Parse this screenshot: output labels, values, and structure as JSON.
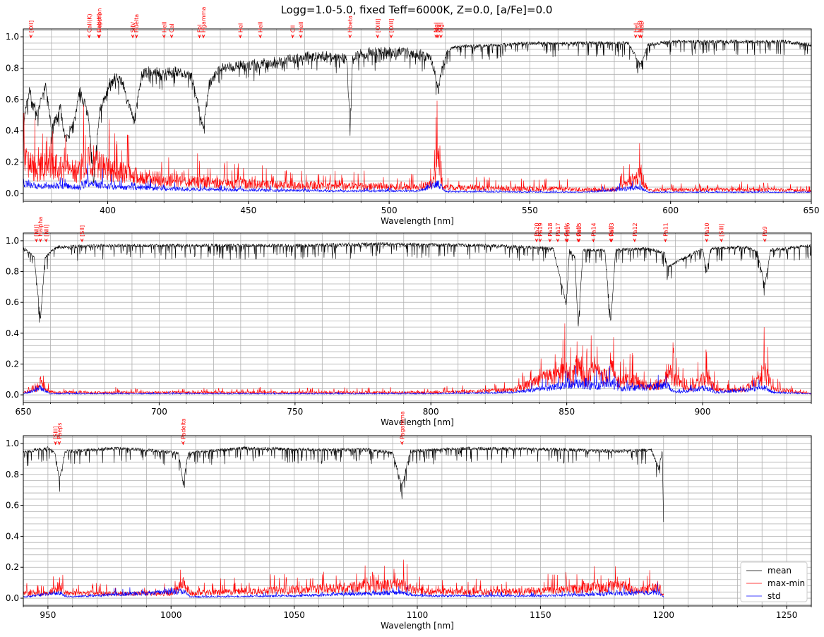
{
  "figure": {
    "title": "Logg=1.0-5.0, fixed Teff=6000K, Z=0.0, [a/Fe]=0.0"
  },
  "colors": {
    "mean": "#000000",
    "maxmin": "#ff0000",
    "std": "#0000ff",
    "lines": "#ff0000",
    "grid": "#b0b0b0"
  },
  "chart_data": [
    {
      "type": "line",
      "xlabel": "Wavelength [nm]",
      "ylabel": "",
      "xlim": [
        370,
        650
      ],
      "ylim": [
        -0.05,
        1.05
      ],
      "xticks": [
        400,
        450,
        500,
        550,
        600,
        650
      ],
      "yticks": [
        0.0,
        0.2,
        0.4,
        0.6,
        0.8,
        1.0
      ],
      "grid": true,
      "series": [
        {
          "name": "mean",
          "color": "#000000",
          "x": [
            370,
            372,
            375,
            378,
            380,
            383,
            385,
            388,
            390,
            393,
            395,
            397,
            400,
            403,
            405,
            409.5,
            412,
            415,
            420,
            425,
            430,
            434,
            436,
            440,
            445,
            450,
            455,
            460,
            465,
            470,
            475,
            480,
            485,
            486.1,
            487,
            490,
            495,
            500,
            505,
            510,
            515,
            517.5,
            519,
            522,
            525,
            530,
            540,
            550,
            560,
            570,
            580,
            585,
            589.3,
            592,
            600,
            610,
            620,
            630,
            640,
            650
          ],
          "y": [
            0.48,
            0.7,
            0.55,
            0.75,
            0.45,
            0.6,
            0.38,
            0.5,
            0.7,
            0.55,
            0.12,
            0.55,
            0.72,
            0.78,
            0.76,
            0.5,
            0.8,
            0.82,
            0.8,
            0.82,
            0.78,
            0.45,
            0.74,
            0.84,
            0.85,
            0.86,
            0.87,
            0.88,
            0.9,
            0.91,
            0.92,
            0.92,
            0.9,
            0.45,
            0.9,
            0.93,
            0.94,
            0.94,
            0.94,
            0.93,
            0.9,
            0.7,
            0.88,
            0.94,
            0.95,
            0.95,
            0.96,
            0.97,
            0.97,
            0.97,
            0.97,
            0.97,
            0.83,
            0.96,
            0.98,
            0.98,
            0.98,
            0.98,
            0.98,
            0.96
          ]
        },
        {
          "name": "max-min",
          "color": "#ff0000",
          "x": [
            370,
            375,
            380,
            385,
            390,
            393,
            395,
            397,
            400,
            405,
            410,
            420,
            430,
            440,
            450,
            460,
            470,
            480,
            490,
            500,
            510,
            515,
            517.5,
            519,
            522,
            530,
            540,
            550,
            560,
            570,
            580,
            589.3,
            592,
            600,
            610,
            620,
            630,
            640,
            650
          ],
          "y": [
            0.3,
            0.2,
            0.25,
            0.2,
            0.18,
            0.3,
            0.28,
            0.25,
            0.2,
            0.18,
            0.15,
            0.12,
            0.1,
            0.09,
            0.08,
            0.07,
            0.07,
            0.06,
            0.06,
            0.06,
            0.05,
            0.08,
            0.27,
            0.05,
            0.05,
            0.05,
            0.04,
            0.04,
            0.04,
            0.03,
            0.03,
            0.15,
            0.03,
            0.03,
            0.03,
            0.03,
            0.03,
            0.03,
            0.02
          ]
        },
        {
          "name": "std",
          "color": "#0000ff",
          "x": [
            370,
            375,
            380,
            385,
            390,
            393,
            395,
            397,
            400,
            405,
            410,
            420,
            430,
            440,
            450,
            460,
            470,
            480,
            490,
            500,
            510,
            517.5,
            520,
            530,
            550,
            570,
            589.3,
            592,
            610,
            630,
            650
          ],
          "y": [
            0.1,
            0.06,
            0.07,
            0.06,
            0.05,
            0.1,
            0.09,
            0.08,
            0.06,
            0.05,
            0.05,
            0.04,
            0.035,
            0.03,
            0.03,
            0.025,
            0.025,
            0.02,
            0.02,
            0.02,
            0.02,
            0.08,
            0.015,
            0.015,
            0.012,
            0.01,
            0.05,
            0.01,
            0.01,
            0.01,
            0.01
          ]
        }
      ],
      "line_markers": [
        {
          "label": "[OII]",
          "x": 372.7
        },
        {
          "label": "CaII(K)",
          "x": 393.4
        },
        {
          "label": "CaII(H)",
          "x": 396.8
        },
        {
          "label": "Hepsilon",
          "x": 397.0
        },
        {
          "label": "SiIV",
          "x": 408.9
        },
        {
          "label": "Hdelta",
          "x": 410.2
        },
        {
          "label": "HeII",
          "x": 420.0
        },
        {
          "label": "CaI",
          "x": 422.7
        },
        {
          "label": "FeI",
          "x": 432.6
        },
        {
          "label": "Hgamma",
          "x": 434.0
        },
        {
          "label": "HeI",
          "x": 447.1
        },
        {
          "label": "HeII",
          "x": 454.2
        },
        {
          "label": "CII",
          "x": 465.7
        },
        {
          "label": "HeII",
          "x": 468.6
        },
        {
          "label": "Hbeta",
          "x": 486.1
        },
        {
          "label": "[OIII]",
          "x": 495.9
        },
        {
          "label": "[OIII]",
          "x": 500.7
        },
        {
          "label": "MgI",
          "x": 516.7
        },
        {
          "label": "MgI",
          "x": 517.3
        },
        {
          "label": "MgI",
          "x": 518.4
        },
        {
          "label": "HeI",
          "x": 587.6
        },
        {
          "label": "NaD",
          "x": 589.0
        },
        {
          "label": "NaD",
          "x": 589.6
        }
      ]
    },
    {
      "type": "line",
      "xlabel": "Wavelength [nm]",
      "ylabel": "",
      "xlim": [
        650,
        940
      ],
      "ylim": [
        -0.05,
        1.05
      ],
      "xticks": [
        650,
        700,
        750,
        800,
        850,
        900
      ],
      "yticks": [
        0.0,
        0.2,
        0.4,
        0.6,
        0.8,
        1.0
      ],
      "grid": true,
      "series": [
        {
          "name": "mean",
          "color": "#000000",
          "x": [
            650,
            654,
            656.3,
            658,
            662,
            680,
            700,
            720,
            750,
            780,
            820,
            845,
            849.8,
            851,
            853,
            854.2,
            856,
            864,
            866.2,
            868,
            880,
            886,
            887,
            900,
            901.5,
            903,
            915,
            920,
            922.9,
            925,
            940
          ],
          "y": [
            0.97,
            0.9,
            0.5,
            0.9,
            0.97,
            0.98,
            0.98,
            0.98,
            0.98,
            0.99,
            0.98,
            0.96,
            0.6,
            0.95,
            0.9,
            0.45,
            0.95,
            0.95,
            0.48,
            0.95,
            0.96,
            0.93,
            0.84,
            0.96,
            0.81,
            0.96,
            0.97,
            0.95,
            0.72,
            0.95,
            0.98
          ]
        },
        {
          "name": "max-min",
          "color": "#ff0000",
          "x": [
            650,
            655,
            656.3,
            658,
            662,
            700,
            750,
            800,
            830,
            838,
            842,
            846,
            849.8,
            852,
            854.2,
            857,
            860,
            864,
            866.2,
            868,
            875,
            880,
            886,
            887,
            895,
            901.5,
            905,
            915,
            922.9,
            926,
            940
          ],
          "y": [
            0.02,
            0.04,
            0.11,
            0.04,
            0.02,
            0.02,
            0.02,
            0.02,
            0.04,
            0.1,
            0.14,
            0.16,
            0.19,
            0.14,
            0.26,
            0.12,
            0.2,
            0.15,
            0.25,
            0.12,
            0.12,
            0.06,
            0.1,
            0.2,
            0.04,
            0.15,
            0.04,
            0.04,
            0.19,
            0.05,
            0.01
          ]
        },
        {
          "name": "std",
          "color": "#0000ff",
          "x": [
            650,
            656.3,
            660,
            700,
            750,
            800,
            830,
            840,
            849.8,
            854.2,
            860,
            866.2,
            870,
            887,
            890,
            901.5,
            905,
            922.9,
            926,
            940
          ],
          "y": [
            0.01,
            0.06,
            0.01,
            0.01,
            0.01,
            0.01,
            0.02,
            0.05,
            0.08,
            0.1,
            0.07,
            0.1,
            0.05,
            0.08,
            0.02,
            0.06,
            0.02,
            0.06,
            0.02,
            0.01
          ]
        }
      ],
      "line_markers": [
        {
          "label": "[NII]",
          "x": 654.8
        },
        {
          "label": "Halpha",
          "x": 656.3
        },
        {
          "label": "[NII]",
          "x": 658.4
        },
        {
          "label": "[SII]",
          "x": 671.6
        },
        {
          "label": "Pa20",
          "x": 838.9
        },
        {
          "label": "Pa19",
          "x": 840.2
        },
        {
          "label": "Pa18",
          "x": 843.8
        },
        {
          "label": "Pa17",
          "x": 846.7
        },
        {
          "label": "CaII",
          "x": 849.8
        },
        {
          "label": "Pa16",
          "x": 850.2
        },
        {
          "label": "CaII",
          "x": 854.2
        },
        {
          "label": "Pa15",
          "x": 854.5
        },
        {
          "label": "Pa14",
          "x": 859.8
        },
        {
          "label": "CaII",
          "x": 866.2
        },
        {
          "label": "Pa13",
          "x": 866.5
        },
        {
          "label": "Pa12",
          "x": 875.0
        },
        {
          "label": "Pa11",
          "x": 886.3
        },
        {
          "label": "Pa10",
          "x": 901.5
        },
        {
          "label": "[SIII]",
          "x": 906.9
        },
        {
          "label": "Pa9",
          "x": 922.9
        }
      ]
    },
    {
      "type": "line",
      "xlabel": "Wavelength [nm]",
      "ylabel": "",
      "xlim": [
        940,
        1260
      ],
      "ylim": [
        -0.05,
        1.05
      ],
      "xticks": [
        950,
        1000,
        1050,
        1100,
        1150,
        1200,
        1250
      ],
      "yticks": [
        0.0,
        0.2,
        0.4,
        0.6,
        0.8,
        1.0
      ],
      "grid": true,
      "legend_placement": "bottom-right",
      "series": [
        {
          "name": "mean",
          "color": "#000000",
          "x": [
            940,
            945,
            950,
            953,
            954.6,
            957,
            980,
            1003,
            1004.9,
            1007,
            1030,
            1060,
            1080,
            1090,
            1093.8,
            1097,
            1120,
            1160,
            1180,
            1195,
            1198,
            1199.5,
            1200
          ],
          "y": [
            0.95,
            0.97,
            0.98,
            0.95,
            0.77,
            0.96,
            0.98,
            0.95,
            0.75,
            0.95,
            0.98,
            0.97,
            0.97,
            0.95,
            0.73,
            0.96,
            0.98,
            0.97,
            0.96,
            0.97,
            0.85,
            0.96,
            0.5
          ]
        },
        {
          "name": "max-min",
          "color": "#ff0000",
          "x": [
            940,
            950,
            954.6,
            958,
            980,
            1000,
            1004.9,
            1008,
            1030,
            1050,
            1080,
            1090,
            1093.8,
            1100,
            1130,
            1160,
            1170,
            1183,
            1190,
            1198,
            1200
          ],
          "y": [
            0.04,
            0.04,
            0.1,
            0.04,
            0.04,
            0.04,
            0.12,
            0.04,
            0.06,
            0.07,
            0.1,
            0.11,
            0.11,
            0.06,
            0.05,
            0.07,
            0.09,
            0.1,
            0.06,
            0.1,
            0.02
          ]
        },
        {
          "name": "std",
          "color": "#0000ff",
          "x": [
            940,
            954.6,
            958,
            1004.9,
            1008,
            1050,
            1093.8,
            1100,
            1150,
            1183,
            1198,
            1200
          ],
          "y": [
            0.01,
            0.05,
            0.01,
            0.06,
            0.01,
            0.02,
            0.05,
            0.02,
            0.02,
            0.04,
            0.05,
            0.01
          ]
        }
      ],
      "line_markers": [
        {
          "label": "[SIII]",
          "x": 953.1
        },
        {
          "label": "Paeps",
          "x": 954.6
        },
        {
          "label": "Padelta",
          "x": 1004.9
        },
        {
          "label": "Pagamma",
          "x": 1093.8
        }
      ]
    }
  ]
}
